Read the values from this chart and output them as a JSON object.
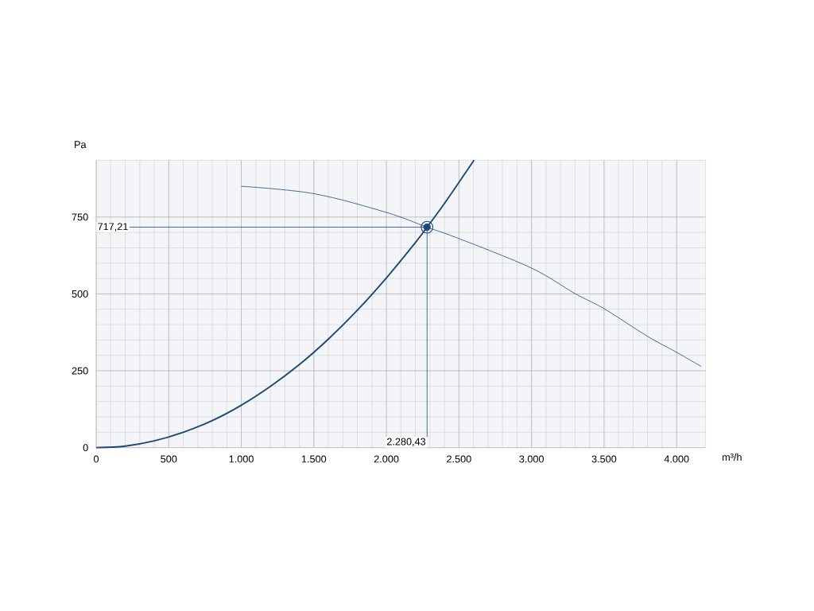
{
  "chart_data": {
    "type": "line",
    "xlabel": "m³/h",
    "ylabel": "Pa",
    "xlim": [
      0,
      4200
    ],
    "ylim": [
      0,
      935
    ],
    "xticks": [
      0,
      {
        "value": 500,
        "label": "500"
      },
      {
        "value": 1000,
        "label": "1.000"
      },
      {
        "value": 1500,
        "label": "1.500"
      },
      {
        "value": 2000,
        "label": "2.000"
      },
      {
        "value": 2500,
        "label": "2.500"
      },
      {
        "value": 3000,
        "label": "3.000"
      },
      {
        "value": 3500,
        "label": "3.500"
      },
      {
        "value": 4000,
        "label": "4.000"
      }
    ],
    "yticks": [
      0,
      250,
      500,
      750
    ],
    "grid": true,
    "series": [
      {
        "color": "#1d4777",
        "x": [
          0,
          200,
          400,
          600,
          800,
          1000,
          1200,
          1400,
          1600,
          1800,
          2000,
          2200,
          2280,
          2400,
          2604
        ],
        "values": [
          0,
          5,
          22,
          50,
          88,
          138,
          199,
          270,
          353,
          447,
          552,
          667,
          717,
          794,
          935
        ]
      },
      {
        "color": "#1d4777",
        "x": [
          1000,
          1500,
          2000,
          2280,
          2500,
          3000,
          3300,
          3500,
          3800,
          4000,
          4170
        ],
        "values": [
          850,
          826,
          765,
          717,
          680,
          584,
          501,
          452,
          362,
          310,
          264
        ]
      },
      {
        "type": "scatter",
        "color": "#1d4777",
        "marker": "circle",
        "x": [
          2280
        ],
        "values": [
          717
        ]
      }
    ],
    "annotations": [
      {
        "text": "717,21",
        "x": 2280.43,
        "y": 717.21
      },
      {
        "text": "2.280,43",
        "x": 2280.43,
        "y": 717.21
      }
    ]
  }
}
